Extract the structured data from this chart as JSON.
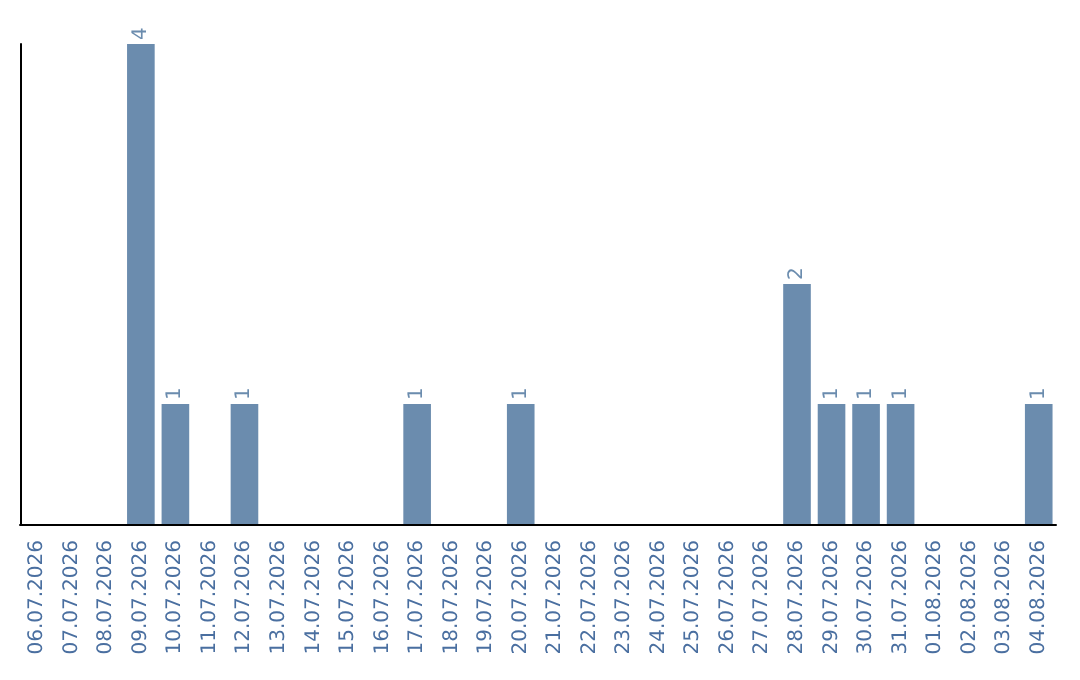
{
  "chart_data": {
    "type": "bar",
    "categories": [
      "06.07.2026",
      "07.07.2026",
      "08.07.2026",
      "09.07.2026",
      "10.07.2026",
      "11.07.2026",
      "12.07.2026",
      "13.07.2026",
      "14.07.2026",
      "15.07.2026",
      "16.07.2026",
      "17.07.2026",
      "18.07.2026",
      "19.07.2026",
      "20.07.2026",
      "21.07.2026",
      "22.07.2026",
      "23.07.2026",
      "24.07.2026",
      "25.07.2026",
      "26.07.2026",
      "27.07.2026",
      "28.07.2026",
      "29.07.2026",
      "30.07.2026",
      "31.07.2026",
      "01.08.2026",
      "02.08.2026",
      "03.08.2026",
      "04.08.2026"
    ],
    "values": [
      0,
      0,
      0,
      4,
      1,
      0,
      1,
      0,
      0,
      0,
      0,
      1,
      0,
      0,
      1,
      0,
      0,
      0,
      0,
      0,
      0,
      0,
      2,
      1,
      1,
      1,
      0,
      0,
      0,
      1
    ],
    "value_labels": [
      null,
      null,
      null,
      "4",
      "1",
      null,
      "1",
      null,
      null,
      null,
      null,
      "1",
      null,
      null,
      "1",
      null,
      null,
      null,
      null,
      null,
      null,
      null,
      "2",
      "1",
      "1",
      "1",
      null,
      null,
      null,
      "1"
    ],
    "color": "#6b8cae",
    "grid": false,
    "tick_labels": "x"
  }
}
